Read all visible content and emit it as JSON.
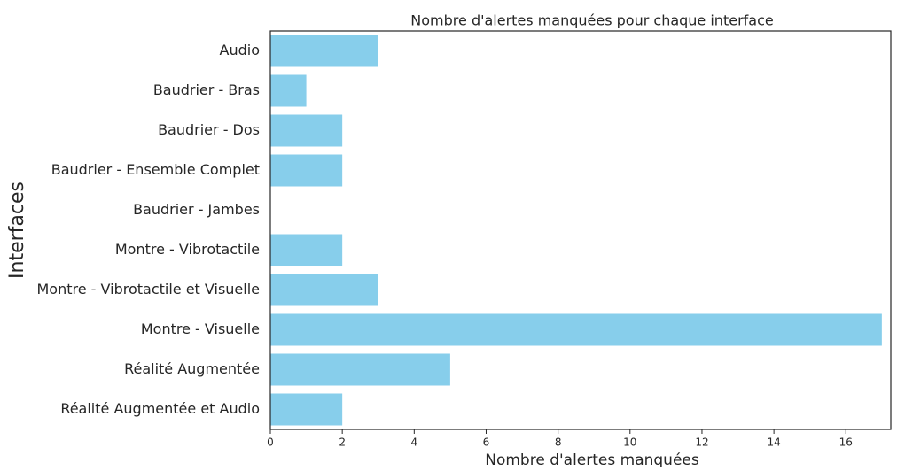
{
  "chart_data": {
    "type": "barh",
    "title": "Nombre d'alertes manquées pour chaque interface",
    "xlabel": "Nombre d'alertes manquées",
    "ylabel": "Interfaces",
    "categories": [
      "Audio",
      "Baudrier - Bras",
      "Baudrier - Dos",
      "Baudrier - Ensemble Complet",
      "Baudrier - Jambes",
      "Montre - Vibrotactile",
      "Montre - Vibrotactile et Visuelle",
      "Montre - Visuelle",
      "Réalité Augmentée",
      "Réalité Augmentée et Audio"
    ],
    "values": [
      3,
      1,
      2,
      2,
      0,
      2,
      3,
      17,
      5,
      2
    ],
    "color": "#87ceeb",
    "xlim": [
      0,
      17.25
    ],
    "xticks": [
      0,
      2,
      4,
      6,
      8,
      10,
      12,
      14,
      16
    ],
    "grid": false
  }
}
